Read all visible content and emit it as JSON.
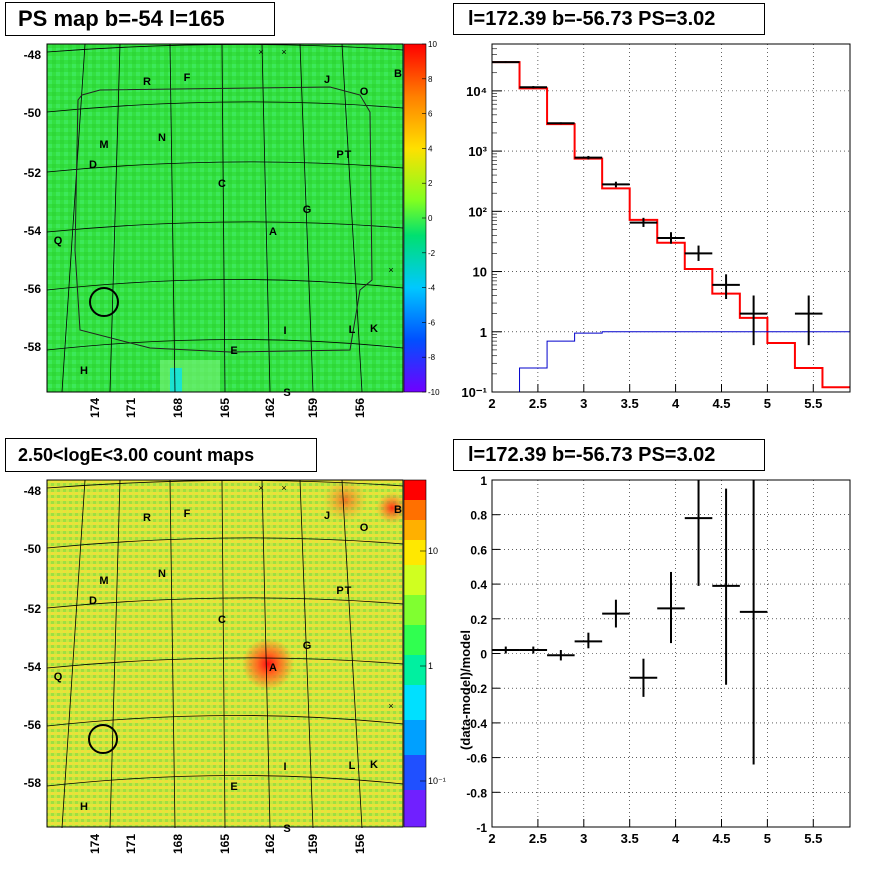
{
  "panels": {
    "ps_map": {
      "title": "PS map b=-54 l=165",
      "colorbar_ticks": [
        "10",
        "8",
        "6",
        "4",
        "2",
        "0",
        "-2",
        "-4",
        "-6",
        "-8",
        "-10"
      ],
      "colorbar_range": [
        -10,
        10
      ]
    },
    "count_map": {
      "title": "2.50<logE<3.00 count maps",
      "colorbar_ticks": [
        "10",
        "1",
        "10⁻¹"
      ]
    },
    "spectrum": {
      "title": "l=172.39 b=-56.73 PS=3.02"
    },
    "residual": {
      "title": "l=172.39 b=-56.73 PS=3.02"
    }
  },
  "map_axes": {
    "y_ticks": [
      "-48",
      "-50",
      "-52",
      "-54",
      "-56",
      "-58"
    ],
    "x_ticks": [
      "174",
      "171",
      "168",
      "165",
      "162",
      "159",
      "156"
    ],
    "source_labels": [
      "R",
      "F",
      "J",
      "O",
      "B",
      "M",
      "N",
      "D",
      "P",
      "T",
      "C",
      "G",
      "Q",
      "A",
      "L",
      "K",
      "I",
      "E",
      "H",
      "S"
    ]
  },
  "chart_data": [
    {
      "type": "line",
      "panel": "spectrum",
      "title": "l=172.39 b=-56.73 PS=3.02",
      "x_ticks": [
        "2",
        "2.5",
        "3",
        "3.5",
        "4",
        "4.5",
        "5",
        "5.5"
      ],
      "y_ticks": [
        "10⁻¹",
        "1",
        "10",
        "10²",
        "10³",
        "10⁴"
      ],
      "xlim": [
        2.0,
        5.9
      ],
      "ylim": [
        0.1,
        60000
      ],
      "yscale": "log",
      "grid": true,
      "series": [
        {
          "color": "#ff0000",
          "step_edges": [
            2.0,
            2.3,
            2.6,
            2.9,
            3.2,
            3.5,
            3.8,
            4.1,
            4.4,
            4.7,
            5.0,
            5.3,
            5.6,
            5.9
          ],
          "values": [
            30000,
            11000,
            2800,
            750,
            240,
            72,
            30,
            11,
            4.3,
            1.7,
            0.65,
            0.25,
            0.12
          ]
        },
        {
          "color": "#0000cc",
          "step_edges": [
            2.3,
            2.6,
            2.9,
            3.2,
            3.5,
            3.8,
            4.1,
            4.4,
            4.7,
            5.0,
            5.3,
            5.6,
            5.9
          ],
          "values": [
            0.25,
            0.7,
            0.95,
            1,
            1,
            1,
            1,
            1,
            1,
            1,
            1,
            1
          ]
        },
        {
          "color": "#000000",
          "points": [
            {
              "x": 2.15,
              "y": 30000,
              "xerr": 0.15,
              "lo": 29000,
              "hi": 31000
            },
            {
              "x": 2.45,
              "y": 11500,
              "xerr": 0.15,
              "lo": 11000,
              "hi": 12000
            },
            {
              "x": 2.75,
              "y": 2900,
              "xerr": 0.15,
              "lo": 2800,
              "hi": 3000
            },
            {
              "x": 3.05,
              "y": 780,
              "xerr": 0.15,
              "lo": 730,
              "hi": 830
            },
            {
              "x": 3.35,
              "y": 280,
              "xerr": 0.15,
              "lo": 250,
              "hi": 310
            },
            {
              "x": 3.65,
              "y": 65,
              "xerr": 0.15,
              "lo": 55,
              "hi": 78
            },
            {
              "x": 3.95,
              "y": 36,
              "xerr": 0.15,
              "lo": 29,
              "hi": 45
            },
            {
              "x": 4.25,
              "y": 20,
              "xerr": 0.15,
              "lo": 15,
              "hi": 27
            },
            {
              "x": 4.55,
              "y": 6,
              "xerr": 0.15,
              "lo": 3.5,
              "hi": 9
            },
            {
              "x": 4.85,
              "y": 2,
              "xerr": 0.15,
              "lo": 0.6,
              "hi": 4
            },
            {
              "x": 5.45,
              "y": 2,
              "xerr": 0.15,
              "lo": 0.6,
              "hi": 4
            }
          ]
        }
      ]
    },
    {
      "type": "scatter",
      "panel": "residual",
      "title": "l=172.39 b=-56.73 PS=3.02",
      "ylabel": "(data-model)/model",
      "x_ticks": [
        "2",
        "2.5",
        "3",
        "3.5",
        "4",
        "4.5",
        "5",
        "5.5"
      ],
      "y_ticks": [
        "-1",
        "-0.8",
        "-0.6",
        "-0.4",
        "-0.2",
        "0",
        "0.2",
        "0.4",
        "0.6",
        "0.8",
        "1"
      ],
      "xlim": [
        2.0,
        5.9
      ],
      "ylim": [
        -1,
        1
      ],
      "grid": true,
      "points": [
        {
          "x": 2.15,
          "y": 0.02,
          "xerr": 0.15,
          "lo": 0.0,
          "hi": 0.04
        },
        {
          "x": 2.45,
          "y": 0.02,
          "xerr": 0.15,
          "lo": 0.0,
          "hi": 0.04
        },
        {
          "x": 2.75,
          "y": -0.01,
          "xerr": 0.15,
          "lo": -0.04,
          "hi": 0.02
        },
        {
          "x": 3.05,
          "y": 0.07,
          "xerr": 0.15,
          "lo": 0.03,
          "hi": 0.12
        },
        {
          "x": 3.35,
          "y": 0.23,
          "xerr": 0.15,
          "lo": 0.15,
          "hi": 0.31
        },
        {
          "x": 3.65,
          "y": -0.14,
          "xerr": 0.15,
          "lo": -0.25,
          "hi": -0.03
        },
        {
          "x": 3.95,
          "y": 0.26,
          "xerr": 0.15,
          "lo": 0.06,
          "hi": 0.47
        },
        {
          "x": 4.25,
          "y": 0.78,
          "xerr": 0.15,
          "lo": 0.39,
          "hi": 1.0
        },
        {
          "x": 4.55,
          "y": 0.39,
          "xerr": 0.15,
          "lo": -0.18,
          "hi": 0.95
        },
        {
          "x": 4.85,
          "y": 0.24,
          "xerr": 0.15,
          "lo": -0.64,
          "hi": 1.0
        }
      ]
    }
  ]
}
